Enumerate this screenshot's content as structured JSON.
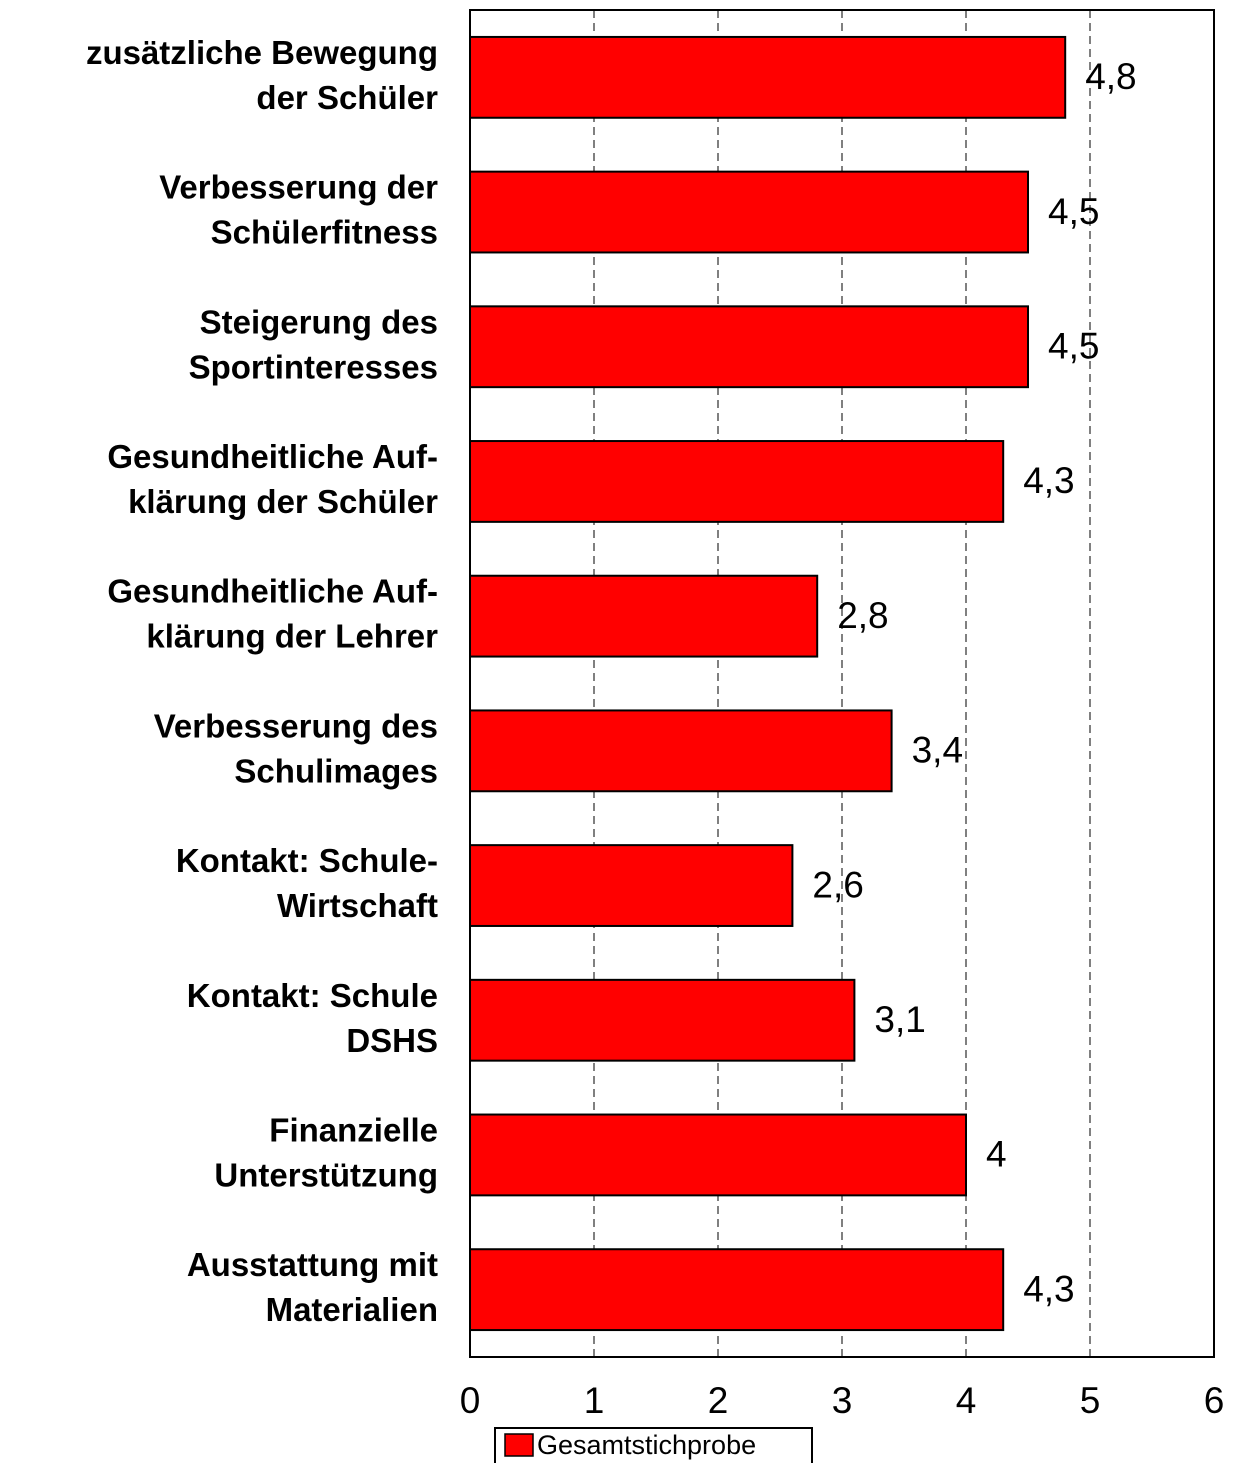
{
  "chart_data": {
    "type": "barh",
    "categories": [
      "zusätzliche Bewegung\nder Schüler",
      "Verbesserung der\nSchülerfitness",
      "Steigerung des\nSportinteresses",
      "Gesundheitliche Auf-\nklärung der Schüler",
      "Gesundheitliche Auf-\nklärung der Lehrer",
      "Verbesserung des\nSchulimages",
      "Kontakt: Schule-\nWirtschaft",
      "Kontakt: Schule\nDSHS",
      "Finanzielle\nUnterstützung",
      "Ausstattung mit\nMaterialien"
    ],
    "series": [
      {
        "name": "Gesamtstichprobe",
        "color": "#ff0000",
        "values": [
          4.8,
          4.5,
          4.5,
          4.3,
          2.8,
          3.4,
          2.6,
          3.1,
          4,
          4.3
        ],
        "value_labels": [
          "4,8",
          "4,5",
          "4,5",
          "4,3",
          "2,8",
          "3,4",
          "2,6",
          "3,1",
          "4",
          "4,3"
        ]
      }
    ],
    "xlim": [
      0,
      6
    ],
    "xticks": [
      0,
      1,
      2,
      3,
      4,
      5,
      6
    ],
    "grid": true,
    "legend": "bottom"
  }
}
